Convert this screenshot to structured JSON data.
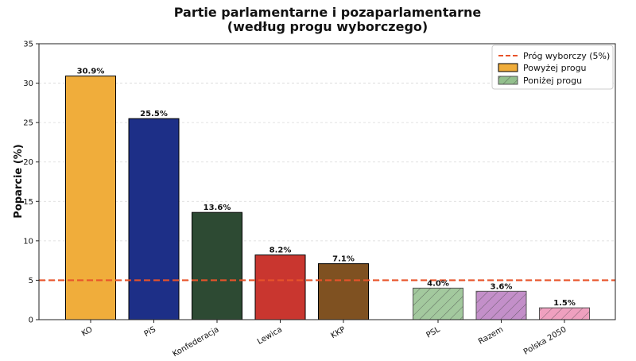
{
  "chart_data": {
    "type": "bar",
    "title": "Partie parlamentarne i pozaparlamentarne",
    "subtitle": "(według progu wyborczego)",
    "xlabel": "",
    "ylabel": "Poparcie (%)",
    "ylim": [
      0,
      35
    ],
    "yticks": [
      0,
      5,
      10,
      15,
      20,
      25,
      30,
      35
    ],
    "grid": "horizontal dashed",
    "threshold": {
      "value": 5,
      "label": "Próg wyborczy (5%)",
      "color": "#e8532a"
    },
    "legend": {
      "position": "top-right",
      "above_label": "Powyżej progu",
      "below_label": "Poniżej progu",
      "above_color": "#f0ad3b",
      "below_color": "#93c08d"
    },
    "categories": [
      "KO",
      "PiS",
      "Konfederacja",
      "Lewica",
      "KKP",
      "PSL",
      "Razem",
      "Polska 2050"
    ],
    "values": [
      30.9,
      25.5,
      13.6,
      8.2,
      7.1,
      4.0,
      3.6,
      1.5
    ],
    "value_labels": [
      "30.9%",
      "25.5%",
      "13.6%",
      "8.2%",
      "7.1%",
      "4.0%",
      "3.6%",
      "1.5%"
    ],
    "colors": [
      "#f0ad3b",
      "#1d2f87",
      "#2d4a33",
      "#c9362f",
      "#7f5121",
      "#93c08d",
      "#b97bc0",
      "#ec8fb4"
    ],
    "below_threshold": [
      false,
      false,
      false,
      false,
      false,
      true,
      true,
      true
    ]
  }
}
